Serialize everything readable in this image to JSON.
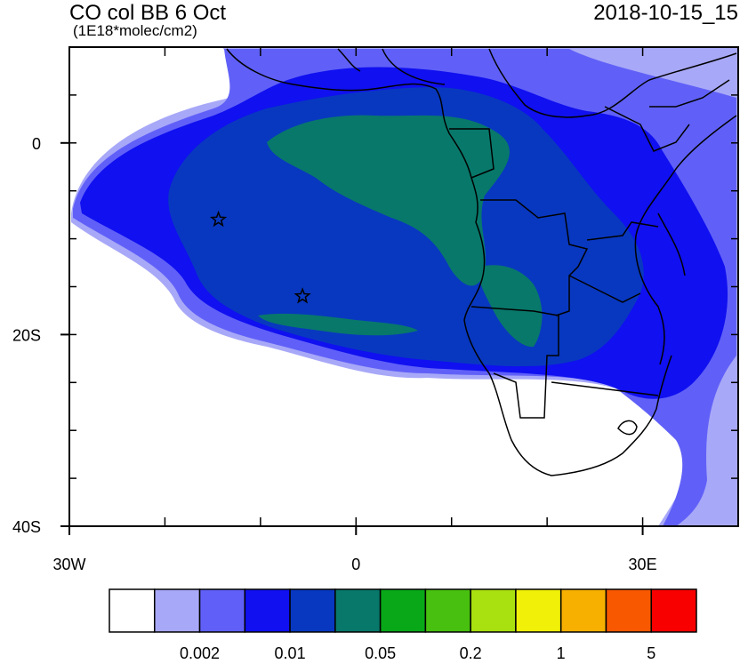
{
  "header": {
    "title": "CO col BB 6 Oct",
    "units": "(1E18*molec/cm2)",
    "datetime": "2018-10-15_15"
  },
  "map": {
    "lon_range": [
      -30,
      40
    ],
    "lat_range": [
      -40,
      10
    ],
    "x_ticks": [
      {
        "value": -30,
        "label": "30W"
      },
      {
        "value": 0,
        "label": "0"
      },
      {
        "value": 30,
        "label": "30E"
      }
    ],
    "y_ticks": [
      {
        "value": 0,
        "label": "0"
      },
      {
        "value": -20,
        "label": "20S"
      },
      {
        "value": -40,
        "label": "40S"
      }
    ],
    "markers": [
      {
        "name": "star",
        "lon": -14.4,
        "lat": -8.0
      },
      {
        "name": "star",
        "lon": -5.6,
        "lat": -16.0
      }
    ]
  },
  "colorbar": {
    "colors": [
      "#ffffff",
      "#a8a8f8",
      "#6060f8",
      "#1010f0",
      "#0838c0",
      "#08786a",
      "#08a818",
      "#48c010",
      "#a8e010",
      "#f0f008",
      "#f8b000",
      "#f85800",
      "#f80000"
    ],
    "labels": [
      {
        "after_box": 2,
        "text": "0.002"
      },
      {
        "after_box": 4,
        "text": "0.01"
      },
      {
        "after_box": 6,
        "text": "0.05"
      },
      {
        "after_box": 8,
        "text": "0.2"
      },
      {
        "after_box": 10,
        "text": "1"
      },
      {
        "after_box": 12,
        "text": "5"
      }
    ]
  }
}
